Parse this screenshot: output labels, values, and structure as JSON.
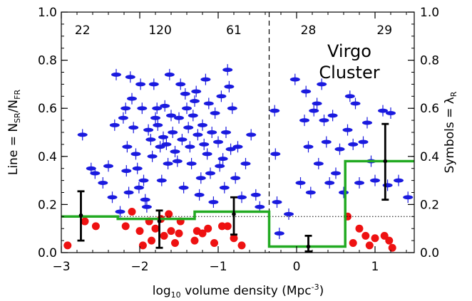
{
  "chart_data": {
    "type": "scatter",
    "title": "",
    "xlabel": {
      "pre": "log",
      "sub": "10",
      "post": " volume density (Mpc",
      "sup": "-3",
      "end": ")"
    },
    "ylabel_left": {
      "pre": "Line = N",
      "sub1": "SR",
      "mid": "/N",
      "sub2": "FR"
    },
    "ylabel_right": {
      "pre": "Symbols = λ",
      "sub": "R"
    },
    "xlim": [
      -3,
      1.5
    ],
    "ylim": [
      0,
      1.0
    ],
    "xticks": [
      -3,
      -2,
      -1,
      0,
      1
    ],
    "xtick_labels": [
      "−3",
      "−2",
      "−1",
      "0",
      "1"
    ],
    "yticks": [
      0,
      0.2,
      0.4,
      0.6,
      0.8,
      1.0
    ],
    "ytick_labels": [
      "0.0",
      "0.2",
      "0.4",
      "0.6",
      "0.8",
      "1.0"
    ],
    "annotation": [
      "Virgo",
      "Cluster"
    ],
    "divider_x": -0.35,
    "reference_y": 0.15,
    "bin_counts": [
      {
        "x": -2.73,
        "label": "22"
      },
      {
        "x": -1.74,
        "label": "120"
      },
      {
        "x": -0.8,
        "label": "61"
      },
      {
        "x": 0.15,
        "label": "28"
      },
      {
        "x": 1.12,
        "label": "29"
      }
    ],
    "ratio_step": {
      "color": "#22aa22",
      "edges": [
        -3.0,
        -2.28,
        -1.3,
        -0.35,
        0.62,
        1.5
      ],
      "values": [
        0.15,
        0.14,
        0.17,
        0.025,
        0.38
      ]
    },
    "ratio_points": {
      "color": "#000000",
      "x": [
        -2.75,
        -1.75,
        -0.8,
        0.15,
        1.13
      ],
      "y": [
        0.155,
        0.13,
        0.16,
        0.025,
        0.38
      ],
      "err_low": [
        0.105,
        0.11,
        0.085,
        0.02,
        0.16
      ],
      "err_high": [
        0.1,
        0.045,
        0.07,
        0.045,
        0.155
      ]
    },
    "series": [
      {
        "kind": "fast-rotator",
        "color": "#1a1adf",
        "points": [
          [
            -2.73,
            0.49
          ],
          [
            -2.62,
            0.35
          ],
          [
            -2.57,
            0.33
          ],
          [
            -2.47,
            0.29
          ],
          [
            -2.4,
            0.36
          ],
          [
            -2.35,
            0.23
          ],
          [
            -2.32,
            0.53
          ],
          [
            -2.25,
            0.17
          ],
          [
            -2.3,
            0.74
          ],
          [
            -2.21,
            0.56
          ],
          [
            -2.18,
            0.6
          ],
          [
            -2.17,
            0.34
          ],
          [
            -2.16,
            0.44
          ],
          [
            -2.14,
            0.25
          ],
          [
            -2.12,
            0.73
          ],
          [
            -2.1,
            0.64
          ],
          [
            -2.08,
            0.52
          ],
          [
            -2.05,
            0.41
          ],
          [
            -2.03,
            0.35
          ],
          [
            -2.01,
            0.27
          ],
          [
            -1.99,
            0.7
          ],
          [
            -1.97,
            0.6
          ],
          [
            -1.95,
            0.3
          ],
          [
            -1.93,
            0.22
          ],
          [
            -1.91,
            0.19
          ],
          [
            -1.89,
            0.51
          ],
          [
            -1.86,
            0.47
          ],
          [
            -1.84,
            0.4
          ],
          [
            -1.82,
            0.7
          ],
          [
            -1.8,
            0.56
          ],
          [
            -1.78,
            0.6
          ],
          [
            -1.77,
            0.53
          ],
          [
            -1.74,
            0.44
          ],
          [
            -1.72,
            0.3
          ],
          [
            -1.7,
            0.48
          ],
          [
            -1.68,
            0.61
          ],
          [
            -1.66,
            0.45
          ],
          [
            -1.64,
            0.37
          ],
          [
            -1.62,
            0.74
          ],
          [
            -1.6,
            0.57
          ],
          [
            -1.58,
            0.5
          ],
          [
            -1.55,
            0.42
          ],
          [
            -1.52,
            0.38
          ],
          [
            -1.5,
            0.56
          ],
          [
            -1.48,
            0.7
          ],
          [
            -1.46,
            0.47
          ],
          [
            -1.44,
            0.27
          ],
          [
            -1.42,
            0.66
          ],
          [
            -1.4,
            0.6
          ],
          [
            -1.38,
            0.52
          ],
          [
            -1.36,
            0.44
          ],
          [
            -1.34,
            0.37
          ],
          [
            -1.32,
            0.57
          ],
          [
            -1.3,
            0.63
          ],
          [
            -1.28,
            0.67
          ],
          [
            -1.26,
            0.49
          ],
          [
            -1.24,
            0.24
          ],
          [
            -1.22,
            0.31
          ],
          [
            -1.2,
            0.53
          ],
          [
            -1.18,
            0.45
          ],
          [
            -1.16,
            0.72
          ],
          [
            -1.14,
            0.41
          ],
          [
            -1.12,
            0.62
          ],
          [
            -1.1,
            0.33
          ],
          [
            -1.08,
            0.5
          ],
          [
            -1.06,
            0.21
          ],
          [
            -1.04,
            0.58
          ],
          [
            -1.0,
            0.46
          ],
          [
            -0.98,
            0.36
          ],
          [
            -0.96,
            0.65
          ],
          [
            -0.94,
            0.39
          ],
          [
            -0.92,
            0.27
          ],
          [
            -0.9,
            0.5
          ],
          [
            -0.88,
            0.76
          ],
          [
            -0.86,
            0.69
          ],
          [
            -0.84,
            0.43
          ],
          [
            -0.82,
            0.6
          ],
          [
            -0.78,
            0.31
          ],
          [
            -0.75,
            0.44
          ],
          [
            -0.7,
            0.23
          ],
          [
            -0.65,
            0.37
          ],
          [
            -0.58,
            0.49
          ],
          [
            -0.52,
            0.24
          ],
          [
            -0.47,
            0.19
          ],
          [
            -0.28,
            0.59
          ],
          [
            -0.27,
            0.41
          ],
          [
            -0.25,
            0.21
          ],
          [
            -0.22,
            0.08
          ],
          [
            -0.1,
            0.16
          ],
          [
            -0.02,
            0.72
          ],
          [
            0.05,
            0.29
          ],
          [
            0.1,
            0.55
          ],
          [
            0.12,
            0.67
          ],
          [
            0.15,
            0.44
          ],
          [
            0.18,
            0.25
          ],
          [
            0.22,
            0.59
          ],
          [
            0.26,
            0.62
          ],
          [
            0.28,
            0.37
          ],
          [
            0.32,
            0.7
          ],
          [
            0.35,
            0.55
          ],
          [
            0.38,
            0.46
          ],
          [
            0.42,
            0.29
          ],
          [
            0.46,
            0.57
          ],
          [
            0.5,
            0.33
          ],
          [
            0.55,
            0.43
          ],
          [
            0.6,
            0.25
          ],
          [
            0.65,
            0.51
          ],
          [
            0.68,
            0.65
          ],
          [
            0.72,
            0.45
          ],
          [
            0.75,
            0.62
          ],
          [
            0.8,
            0.29
          ],
          [
            0.85,
            0.46
          ],
          [
            0.9,
            0.54
          ],
          [
            0.95,
            0.38
          ],
          [
            1.0,
            0.3
          ],
          [
            1.1,
            0.59
          ],
          [
            1.16,
            0.28
          ],
          [
            1.2,
            0.58
          ],
          [
            1.3,
            0.3
          ],
          [
            1.42,
            0.23
          ]
        ]
      },
      {
        "kind": "slow-rotator",
        "color": "#ee1111",
        "points": [
          [
            -2.92,
            0.03
          ],
          [
            -2.7,
            0.13
          ],
          [
            -2.56,
            0.11
          ],
          [
            -2.18,
            0.11
          ],
          [
            -2.1,
            0.17
          ],
          [
            -2.0,
            0.09
          ],
          [
            -1.96,
            0.03
          ],
          [
            -1.88,
            0.13
          ],
          [
            -1.85,
            0.05
          ],
          [
            -1.8,
            0.1
          ],
          [
            -1.73,
            0.14
          ],
          [
            -1.69,
            0.07
          ],
          [
            -1.63,
            0.16
          ],
          [
            -1.6,
            0.09
          ],
          [
            -1.55,
            0.04
          ],
          [
            -1.5,
            0.08
          ],
          [
            -1.48,
            0.13
          ],
          [
            -1.3,
            0.05
          ],
          [
            -1.27,
            0.09
          ],
          [
            -1.2,
            0.08
          ],
          [
            -1.13,
            0.1
          ],
          [
            -1.05,
            0.04
          ],
          [
            -0.95,
            0.11
          ],
          [
            -0.88,
            0.11
          ],
          [
            -0.8,
            0.06
          ],
          [
            -0.7,
            0.03
          ],
          [
            0.65,
            0.15
          ],
          [
            0.72,
            0.04
          ],
          [
            0.8,
            0.1
          ],
          [
            0.88,
            0.07
          ],
          [
            0.93,
            0.03
          ],
          [
            1.0,
            0.06
          ],
          [
            1.12,
            0.07
          ],
          [
            1.18,
            0.05
          ],
          [
            1.22,
            0.02
          ]
        ]
      }
    ]
  }
}
